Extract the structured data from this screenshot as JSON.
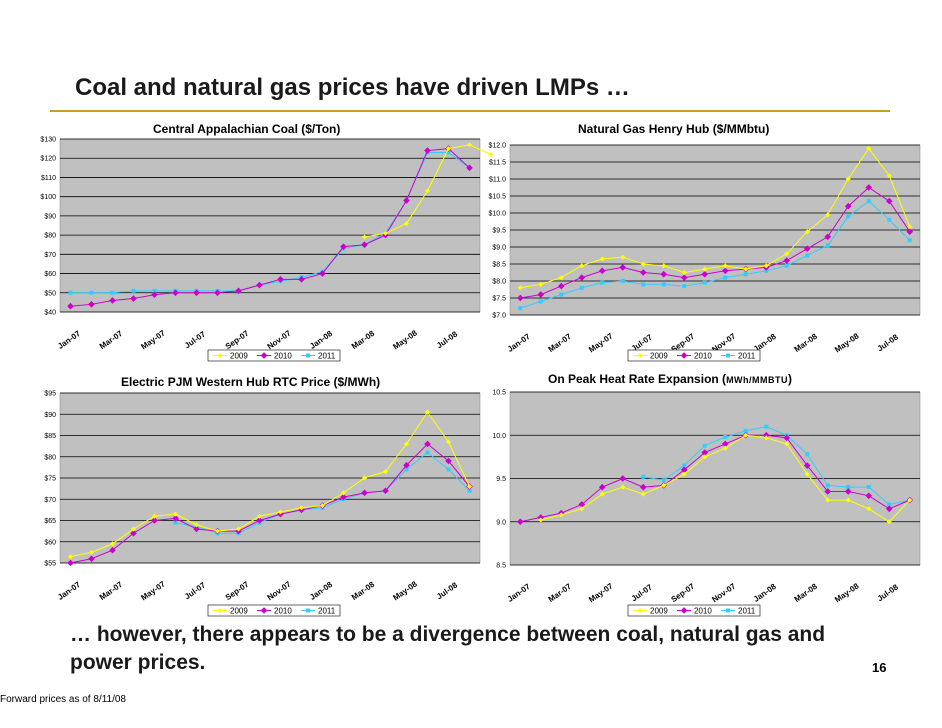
{
  "slide": {
    "title": "Coal and natural gas prices have driven LMPs …",
    "footer_line1": "… however, there appears to be a divergence between coal, natural gas and",
    "footer_line2": "power prices.",
    "note": "Forward prices as of 8/11/08",
    "page_number": "16"
  },
  "colors": {
    "plot_bg": "#c0c0c0",
    "series_2009": "#ffff00",
    "series_2010": "#cc00cc",
    "series_2011": "#33ccff",
    "accent_rule": "#c8a020"
  },
  "chart_data": [
    {
      "type": "line",
      "title": "Central Appalachian Coal ($/Ton)",
      "x_ticks": [
        "Jan-07",
        "Mar-07",
        "May-07",
        "Jul-07",
        "Sep-07",
        "Nov-07",
        "Jan-08",
        "Mar-08",
        "May-08",
        "Jul-08"
      ],
      "ylim": [
        40,
        130
      ],
      "y_ticks": [
        "$40",
        "$50",
        "$60",
        "$70",
        "$80",
        "$90",
        "$100",
        "$110",
        "$120",
        "$130"
      ],
      "y_tick_values": [
        40,
        50,
        60,
        70,
        80,
        90,
        100,
        110,
        120,
        130
      ],
      "series": [
        {
          "name": "2009",
          "values": [
            null,
            null,
            null,
            null,
            null,
            null,
            null,
            null,
            null,
            null,
            null,
            null,
            null,
            null,
            79,
            81,
            86,
            103,
            125,
            127,
            122
          ]
        },
        {
          "name": "2010",
          "values": [
            43,
            44,
            46,
            47,
            49,
            50,
            50,
            50,
            51,
            54,
            57,
            57,
            60,
            74,
            75,
            80,
            98,
            124,
            125,
            115,
            null
          ]
        },
        {
          "name": "2011",
          "values": [
            50,
            50,
            50,
            51,
            51,
            51,
            51,
            51,
            51,
            54,
            56,
            58,
            61,
            73,
            75,
            81,
            98,
            123,
            123,
            115,
            null
          ]
        }
      ],
      "legend": [
        "2009",
        "2010",
        "2011"
      ]
    },
    {
      "type": "line",
      "title": "Natural Gas Henry Hub ($/MMbtu)",
      "x_ticks": [
        "Jan-07",
        "Mar-07",
        "May-07",
        "Jul-07",
        "Sep-07",
        "Nov-07",
        "Jan-08",
        "Mar-08",
        "May-08",
        "Jul-08"
      ],
      "ylim": [
        7.0,
        12.0
      ],
      "y_ticks": [
        "$7.0",
        "$7.5",
        "$8.0",
        "$8.5",
        "$9.0",
        "$9.5",
        "$10.0",
        "$10.5",
        "$11.0",
        "$11.5",
        "$12.0"
      ],
      "y_tick_values": [
        7.0,
        7.5,
        8.0,
        8.5,
        9.0,
        9.5,
        10.0,
        10.5,
        11.0,
        11.5,
        12.0
      ],
      "series": [
        {
          "name": "2009",
          "values": [
            7.8,
            7.9,
            8.1,
            8.45,
            8.65,
            8.7,
            8.5,
            8.45,
            8.25,
            8.35,
            8.45,
            8.35,
            8.45,
            8.8,
            9.45,
            9.95,
            11.0,
            11.9,
            11.1,
            9.6
          ]
        },
        {
          "name": "2010",
          "values": [
            7.5,
            7.6,
            7.85,
            8.1,
            8.3,
            8.4,
            8.25,
            8.2,
            8.1,
            8.2,
            8.3,
            8.35,
            8.4,
            8.6,
            8.95,
            9.3,
            10.2,
            10.75,
            10.35,
            9.45
          ]
        },
        {
          "name": "2011",
          "values": [
            7.2,
            7.4,
            7.6,
            7.8,
            7.95,
            8.0,
            7.9,
            7.9,
            7.85,
            7.95,
            8.1,
            8.2,
            8.3,
            8.45,
            8.75,
            9.05,
            9.9,
            10.35,
            9.8,
            9.2
          ]
        }
      ],
      "legend": [
        "2009",
        "2010",
        "2011"
      ]
    },
    {
      "type": "line",
      "title": "Electric PJM Western Hub RTC Price ($/MWh)",
      "x_ticks": [
        "Jan-07",
        "Mar-07",
        "May-07",
        "Jul-07",
        "Sep-07",
        "Nov-07",
        "Jan-08",
        "Mar-08",
        "May-08",
        "Jul-08"
      ],
      "ylim": [
        55,
        95
      ],
      "y_ticks": [
        "$55",
        "$60",
        "$65",
        "$70",
        "$75",
        "$80",
        "$85",
        "$90",
        "$95"
      ],
      "y_tick_values": [
        55,
        60,
        65,
        70,
        75,
        80,
        85,
        90,
        95
      ],
      "series": [
        {
          "name": "2009",
          "values": [
            56.5,
            57.5,
            59.5,
            63,
            66,
            66.5,
            64,
            62.5,
            63,
            66,
            67,
            68,
            68.5,
            71.5,
            75,
            76.5,
            83,
            90.5,
            83.5,
            73
          ]
        },
        {
          "name": "2010",
          "values": [
            55,
            56,
            58,
            62,
            65,
            65.5,
            63,
            62.5,
            62.5,
            65,
            66.5,
            67.5,
            68.5,
            70.5,
            71.5,
            72,
            78,
            83,
            79,
            73
          ]
        },
        {
          "name": "2011",
          "values": [
            null,
            null,
            null,
            null,
            null,
            null,
            null,
            null,
            null,
            null,
            null,
            null,
            null,
            null,
            null,
            null,
            null,
            null,
            null,
            null
          ]
        }
      ],
      "series_2011_partial": [
        null,
        null,
        null,
        null,
        null,
        64.5,
        63.5,
        62,
        62,
        64.5,
        66.5,
        67.5,
        68,
        70,
        71.5,
        72,
        77,
        81,
        77,
        72
      ],
      "legend": [
        "2009",
        "2010",
        "2011"
      ]
    },
    {
      "type": "line",
      "title": "On Peak Heat Rate Expansion (MWh/MMBTU)",
      "title_prefix": "On Peak Heat Rate Expansion (",
      "title_units": "MWh/MMBTU",
      "title_suffix": ")",
      "x_ticks": [
        "Jan-07",
        "Mar-07",
        "May-07",
        "Jul-07",
        "Sep-07",
        "Nov-07",
        "Jan-08",
        "Mar-08",
        "May-08",
        "Jul-08"
      ],
      "ylim": [
        8.5,
        10.5
      ],
      "y_ticks": [
        "8.5",
        "9.0",
        "9.5",
        "10.0",
        "10.5"
      ],
      "y_tick_values": [
        8.5,
        9.0,
        9.5,
        10.0,
        10.5
      ],
      "series": [
        {
          "name": "2009",
          "values": [
            null,
            9.02,
            9.08,
            9.15,
            9.32,
            9.4,
            9.32,
            9.42,
            9.55,
            9.75,
            9.85,
            10.0,
            9.97,
            9.9,
            9.55,
            9.25,
            9.25,
            9.15,
            9.0,
            9.25
          ]
        },
        {
          "name": "2010",
          "values": [
            9.0,
            9.05,
            9.1,
            9.2,
            9.4,
            9.5,
            9.4,
            9.42,
            9.6,
            9.8,
            9.9,
            10.0,
            10.0,
            9.97,
            9.65,
            9.35,
            9.35,
            9.3,
            9.15,
            9.25
          ]
        },
        {
          "name": "2011",
          "values": [
            null,
            null,
            null,
            null,
            null,
            null,
            9.52,
            9.48,
            9.65,
            9.88,
            9.98,
            10.05,
            10.1,
            10.0,
            9.78,
            9.42,
            9.4,
            9.4,
            9.2,
            9.25
          ]
        }
      ],
      "legend": [
        "2009",
        "2010",
        "2011"
      ]
    }
  ]
}
